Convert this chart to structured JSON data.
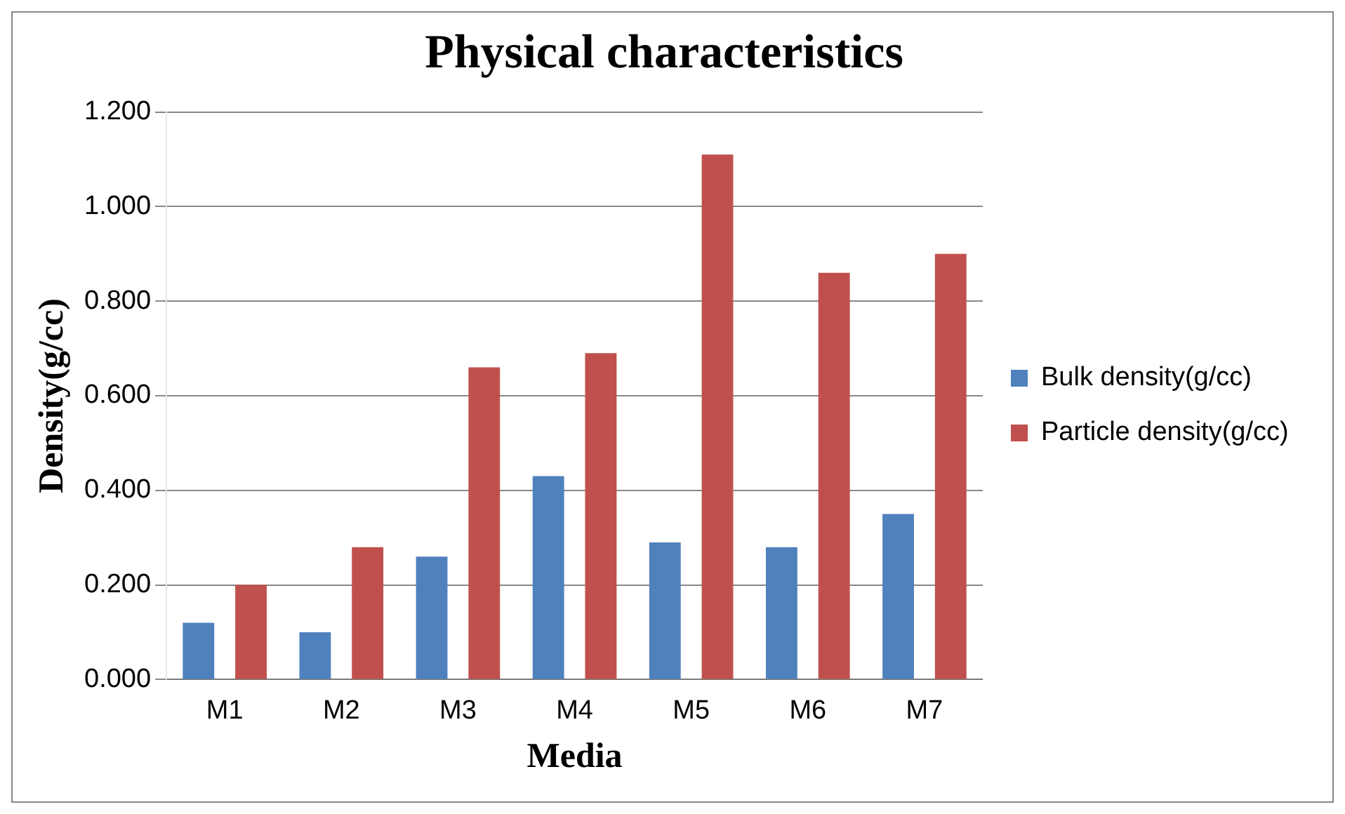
{
  "chart_data": {
    "type": "bar",
    "title": "Physical characteristics",
    "xlabel": "Media",
    "ylabel": "Density(g/cc)",
    "categories": [
      "M1",
      "M2",
      "M3",
      "M4",
      "M5",
      "M6",
      "M7"
    ],
    "series": [
      {
        "name": "Bulk density(g/cc)",
        "color": "#4f81bd",
        "values": [
          0.12,
          0.1,
          0.26,
          0.43,
          0.29,
          0.28,
          0.35
        ]
      },
      {
        "name": "Particle density(g/cc)",
        "color": "#c0504d",
        "values": [
          0.2,
          0.28,
          0.66,
          0.69,
          1.11,
          0.86,
          0.9
        ]
      }
    ],
    "ylim": [
      0,
      1.2
    ],
    "yticks": [
      {
        "value": 0,
        "label": "0.000"
      },
      {
        "value": 0.2,
        "label": "0.200"
      },
      {
        "value": 0.4,
        "label": "0.400"
      },
      {
        "value": 0.6,
        "label": "0.600"
      },
      {
        "value": 0.8,
        "label": "0.800"
      },
      {
        "value": 1,
        "label": "1.000"
      },
      {
        "value": 1.2,
        "label": "1.200"
      }
    ],
    "grid": "y",
    "legend": "right"
  }
}
